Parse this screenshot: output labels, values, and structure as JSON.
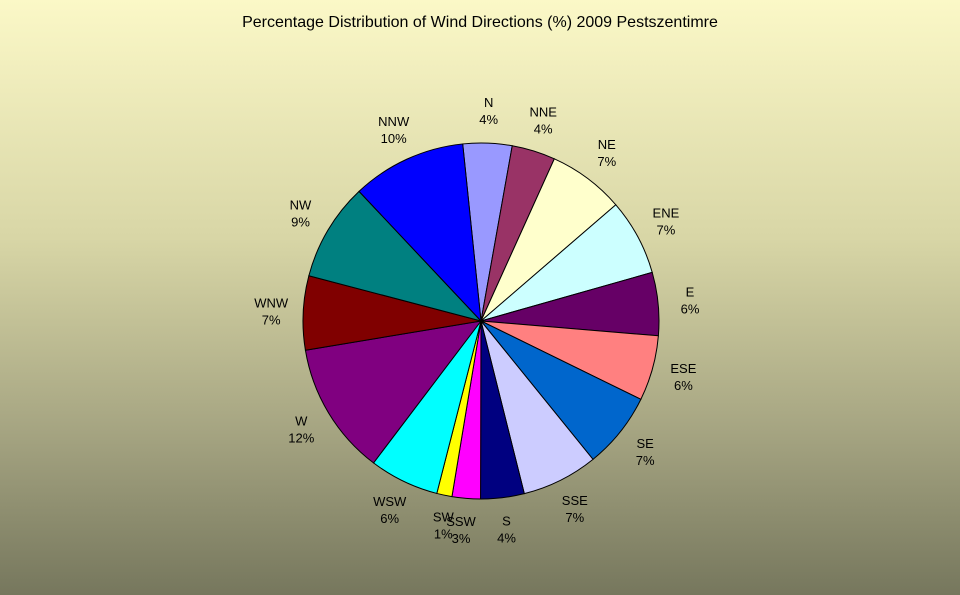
{
  "chart_data": {
    "type": "pie",
    "title": "Percentage Distribution of Wind Directions (%) 2009 Pestszentimre",
    "slices": [
      {
        "label": "N",
        "value": 4.5,
        "percent_label": "4%",
        "color": "#9999ff"
      },
      {
        "label": "NNE",
        "value": 4.0,
        "percent_label": "4%",
        "color": "#993366"
      },
      {
        "label": "NE",
        "value": 7.0,
        "percent_label": "7%",
        "color": "#ffffcc"
      },
      {
        "label": "ENE",
        "value": 7.0,
        "percent_label": "7%",
        "color": "#ccffff"
      },
      {
        "label": "E",
        "value": 5.8,
        "percent_label": "6%",
        "color": "#660066"
      },
      {
        "label": "ESE",
        "value": 6.0,
        "percent_label": "6%",
        "color": "#ff8080"
      },
      {
        "label": "SE",
        "value": 7.0,
        "percent_label": "7%",
        "color": "#0066cc"
      },
      {
        "label": "SSE",
        "value": 7.0,
        "percent_label": "7%",
        "color": "#ccccff"
      },
      {
        "label": "S",
        "value": 4.0,
        "percent_label": "4%",
        "color": "#000080"
      },
      {
        "label": "SSW",
        "value": 2.6,
        "percent_label": "3%",
        "color": "#ff00ff"
      },
      {
        "label": "SW",
        "value": 1.4,
        "percent_label": "1%",
        "color": "#ffff00"
      },
      {
        "label": "WSW",
        "value": 6.4,
        "percent_label": "6%",
        "color": "#00ffff"
      },
      {
        "label": "W",
        "value": 12.2,
        "percent_label": "12%",
        "color": "#800080"
      },
      {
        "label": "WNW",
        "value": 6.8,
        "percent_label": "7%",
        "color": "#800000"
      },
      {
        "label": "NW",
        "value": 9.0,
        "percent_label": "9%",
        "color": "#008080"
      },
      {
        "label": "NNW",
        "value": 10.5,
        "percent_label": "10%",
        "color": "#0000ff"
      }
    ]
  }
}
